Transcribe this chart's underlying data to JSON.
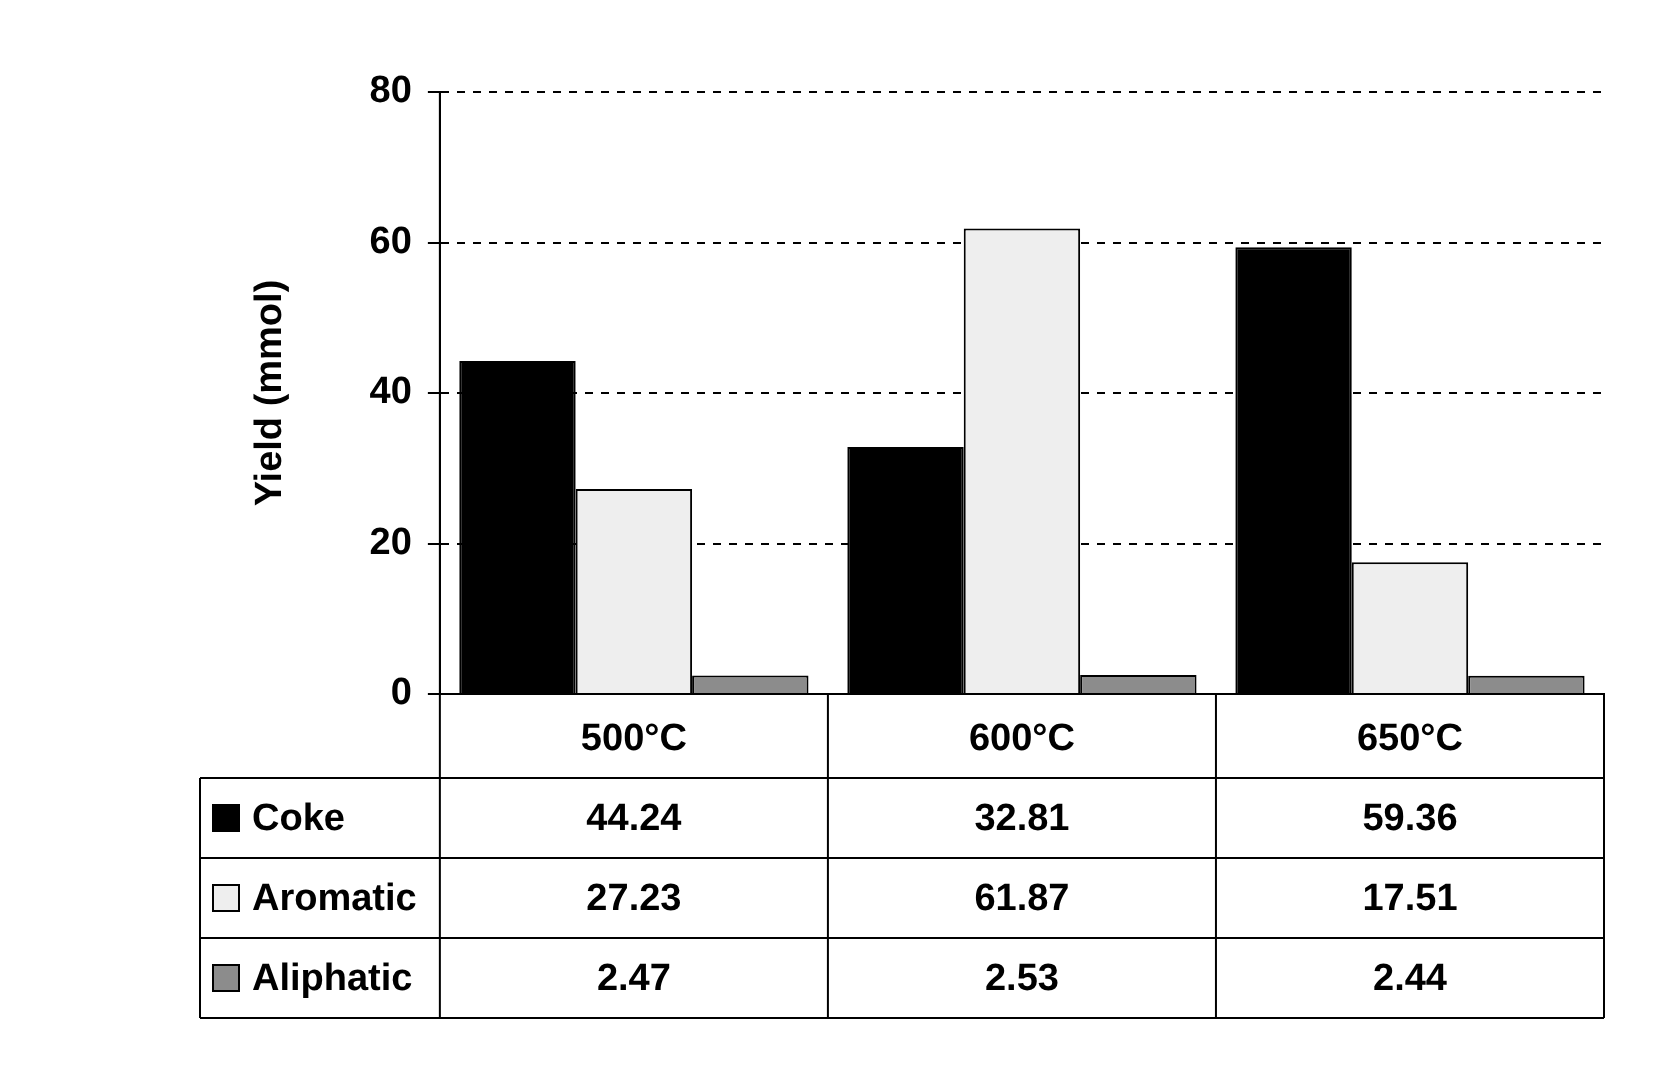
{
  "chart_data": {
    "type": "bar",
    "ylabel": "Yield (mmol)",
    "categories": [
      "500°C",
      "600°C",
      "650°C"
    ],
    "series": [
      {
        "name": "Coke",
        "color": "#000000",
        "values": [
          44.24,
          32.81,
          59.36
        ]
      },
      {
        "name": "Aromatic",
        "color": "#eeeeee",
        "values": [
          27.23,
          61.87,
          17.51
        ]
      },
      {
        "name": "Aliphatic",
        "color": "#8c8c8c",
        "values": [
          2.47,
          2.53,
          2.44
        ]
      }
    ],
    "ylim": [
      0,
      80
    ],
    "yticks": [
      0,
      20,
      40,
      60,
      80
    ],
    "grid": "y",
    "legend": "bottom",
    "data_labels": true
  }
}
